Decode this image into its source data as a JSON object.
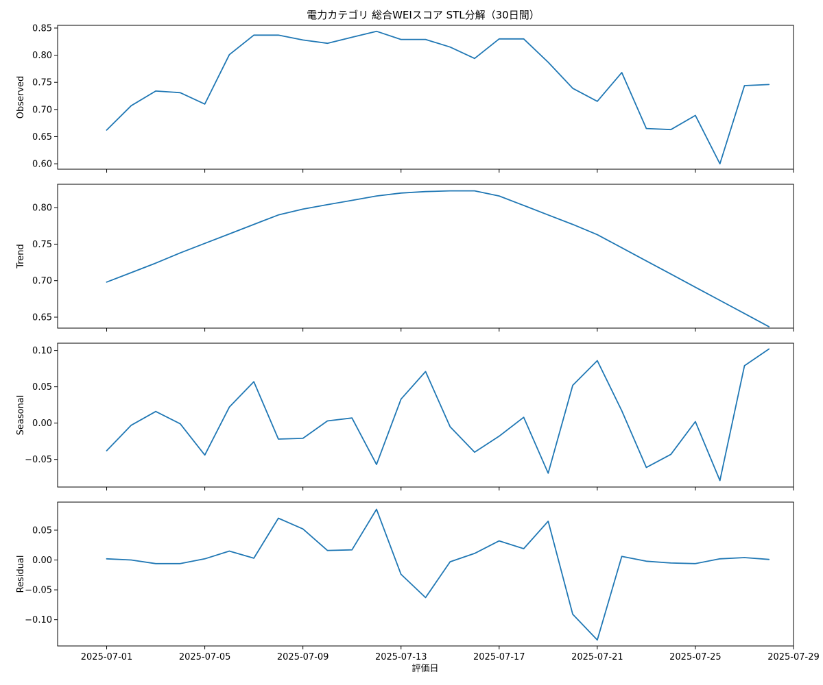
{
  "chart_data": {
    "type": "line",
    "title": "電力カテゴリ 総合WEIスコア STL分解（30日間）",
    "xlabel": "評価日",
    "x_ticks": [
      "2025-07-01",
      "2025-07-05",
      "2025-07-09",
      "2025-07-13",
      "2025-07-17",
      "2025-07-21",
      "2025-07-25",
      "2025-07-29"
    ],
    "x": [
      "2025-07-01",
      "2025-07-02",
      "2025-07-03",
      "2025-07-04",
      "2025-07-05",
      "2025-07-06",
      "2025-07-07",
      "2025-07-08",
      "2025-07-09",
      "2025-07-10",
      "2025-07-11",
      "2025-07-12",
      "2025-07-13",
      "2025-07-14",
      "2025-07-15",
      "2025-07-16",
      "2025-07-17",
      "2025-07-18",
      "2025-07-19",
      "2025-07-20",
      "2025-07-21",
      "2025-07-22",
      "2025-07-23",
      "2025-07-24",
      "2025-07-25",
      "2025-07-26",
      "2025-07-27",
      "2025-07-28"
    ],
    "xlim": [
      "2025-06-29",
      "2025-07-29"
    ],
    "panels": [
      {
        "ylabel": "Observed",
        "ylim": [
          0.59,
          0.855
        ],
        "y_ticks": [
          0.6,
          0.65,
          0.7,
          0.75,
          0.8,
          0.85
        ],
        "y_tick_labels": [
          "0.60",
          "0.65",
          "0.70",
          "0.75",
          "0.80",
          "0.85"
        ],
        "values": [
          0.662,
          0.707,
          0.734,
          0.731,
          0.71,
          0.801,
          0.837,
          0.837,
          0.828,
          0.822,
          0.833,
          0.844,
          0.829,
          0.829,
          0.815,
          0.794,
          0.83,
          0.83,
          0.787,
          0.739,
          0.715,
          0.768,
          0.665,
          0.663,
          0.689,
          0.6,
          0.744,
          0.746
        ]
      },
      {
        "ylabel": "Trend",
        "ylim": [
          0.635,
          0.832
        ],
        "y_ticks": [
          0.65,
          0.7,
          0.75,
          0.8
        ],
        "y_tick_labels": [
          "0.65",
          "0.70",
          "0.75",
          "0.80"
        ],
        "values": [
          0.698,
          0.711,
          0.724,
          0.738,
          0.751,
          0.764,
          0.777,
          0.79,
          0.798,
          0.804,
          0.81,
          0.816,
          0.82,
          0.822,
          0.823,
          0.823,
          0.816,
          0.803,
          0.79,
          0.777,
          0.763,
          0.745,
          0.727,
          0.709,
          0.691,
          0.673,
          0.655,
          0.637
        ]
      },
      {
        "ylabel": "Seasonal",
        "ylim": [
          -0.088,
          0.11
        ],
        "y_ticks": [
          -0.05,
          0.0,
          0.05,
          0.1
        ],
        "y_tick_labels": [
          "−0.05",
          "0.00",
          "0.05",
          "0.10"
        ],
        "values": [
          -0.038,
          -0.003,
          0.016,
          -0.001,
          -0.044,
          0.022,
          0.057,
          -0.022,
          -0.021,
          0.003,
          0.007,
          -0.057,
          0.033,
          0.071,
          -0.005,
          -0.04,
          -0.018,
          0.008,
          -0.069,
          0.052,
          0.086,
          0.017,
          -0.061,
          -0.043,
          0.002,
          -0.079,
          0.079,
          0.102
        ]
      },
      {
        "ylabel": "Residual",
        "ylim": [
          -0.144,
          0.097
        ],
        "y_ticks": [
          -0.1,
          -0.05,
          0.0,
          0.05
        ],
        "y_tick_labels": [
          "−0.10",
          "−0.05",
          "0.00",
          "0.05"
        ],
        "values": [
          0.002,
          0.0,
          -0.006,
          -0.006,
          0.002,
          0.015,
          0.003,
          0.07,
          0.052,
          0.016,
          0.017,
          0.085,
          -0.024,
          -0.063,
          -0.003,
          0.011,
          0.032,
          0.019,
          0.065,
          -0.091,
          -0.134,
          0.006,
          -0.002,
          -0.005,
          -0.006,
          0.002,
          0.004,
          0.001
        ]
      }
    ],
    "colors": {
      "line": "#1f77b4"
    }
  }
}
